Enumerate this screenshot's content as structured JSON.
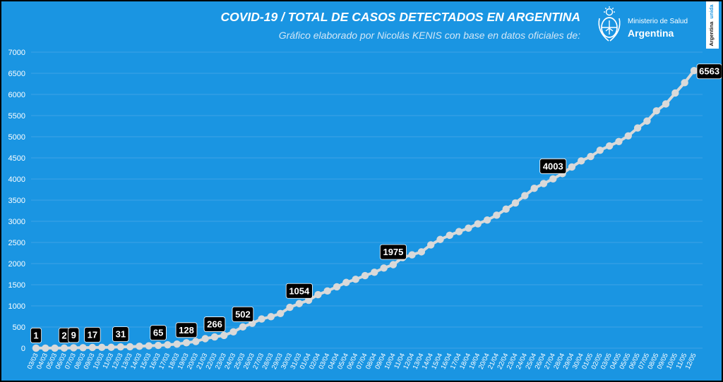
{
  "logo": {
    "line1": "Ministerio de Salud",
    "line2": "Argentina"
  },
  "badge": {
    "word1": "Argentina",
    "word2": "unida"
  },
  "colors": {
    "background": "#1a95e2",
    "line": "#d9d9d9",
    "label_box": "#000000",
    "text": "#ffffff",
    "grid": "#4aa9e9"
  },
  "chart_data": {
    "type": "line",
    "title": "COVID-19  /  TOTAL DE CASOS DETECTADOS EN ARGENTINA",
    "subtitle": "Gráfico elaborado por Nicolás KENIS con base en datos oficiales de:",
    "xlabel": "",
    "ylabel": "",
    "ylim": [
      0,
      7000
    ],
    "yticks": [
      0,
      500,
      1000,
      1500,
      2000,
      2500,
      3000,
      3500,
      4000,
      4500,
      5000,
      5500,
      6000,
      6500,
      7000
    ],
    "grid": true,
    "x": [
      "03/03",
      "04/03",
      "05/03",
      "06/03",
      "07/03",
      "08/03",
      "09/03",
      "10/03",
      "11/03",
      "12/03",
      "13/03",
      "14/03",
      "15/03",
      "16/03",
      "17/03",
      "18/03",
      "19/03",
      "20/03",
      "21/03",
      "22/03",
      "23/03",
      "24/03",
      "25/03",
      "26/03",
      "27/03",
      "28/03",
      "29/03",
      "30/03",
      "31/03",
      "01/04",
      "02/04",
      "03/04",
      "04/04",
      "05/04",
      "06/04",
      "07/04",
      "08/04",
      "09/04",
      "10/04",
      "11/04",
      "12/04",
      "13/04",
      "14/04",
      "15/04",
      "16/04",
      "17/04",
      "18/04",
      "19/04",
      "20/04",
      "21/04",
      "22/04",
      "23/04",
      "24/04",
      "25/04",
      "26/04",
      "27/04",
      "28/04",
      "29/04",
      "30/04",
      "01/05",
      "02/05",
      "03/05",
      "04/05",
      "05/05",
      "06/05",
      "07/05",
      "08/05",
      "09/05",
      "10/05",
      "11/05",
      "12/05"
    ],
    "series": [
      {
        "values": [
          1,
          1,
          1,
          2,
          9,
          12,
          17,
          19,
          21,
          31,
          34,
          45,
          56,
          65,
          79,
          97,
          128,
          158,
          225,
          266,
          301,
          387,
          502,
          589,
          690,
          745,
          820,
          966,
          1054,
          1133,
          1265,
          1353,
          1451,
          1554,
          1628,
          1715,
          1795,
          1894,
          1975,
          2142,
          2208,
          2277,
          2443,
          2571,
          2669,
          2758,
          2839,
          2941,
          3031,
          3144,
          3288,
          3435,
          3607,
          3780,
          3892,
          4003,
          4127,
          4285,
          4428,
          4532,
          4681,
          4783,
          4887,
          5020,
          5208,
          5371,
          5611,
          5776,
          6034,
          6278,
          6563
        ]
      }
    ],
    "data_labels": [
      {
        "x": "03/03",
        "value": 1
      },
      {
        "x": "06/03",
        "value": 2
      },
      {
        "x": "07/03",
        "value": 9
      },
      {
        "x": "09/03",
        "value": 17
      },
      {
        "x": "12/03",
        "value": 31
      },
      {
        "x": "16/03",
        "value": 65
      },
      {
        "x": "19/03",
        "value": 128
      },
      {
        "x": "22/03",
        "value": 266
      },
      {
        "x": "25/03",
        "value": 502
      },
      {
        "x": "31/03",
        "value": 1054
      },
      {
        "x": "10/04",
        "value": 1975
      },
      {
        "x": "27/04",
        "value": 4003
      },
      {
        "x": "12/05",
        "value": 6563
      }
    ]
  }
}
